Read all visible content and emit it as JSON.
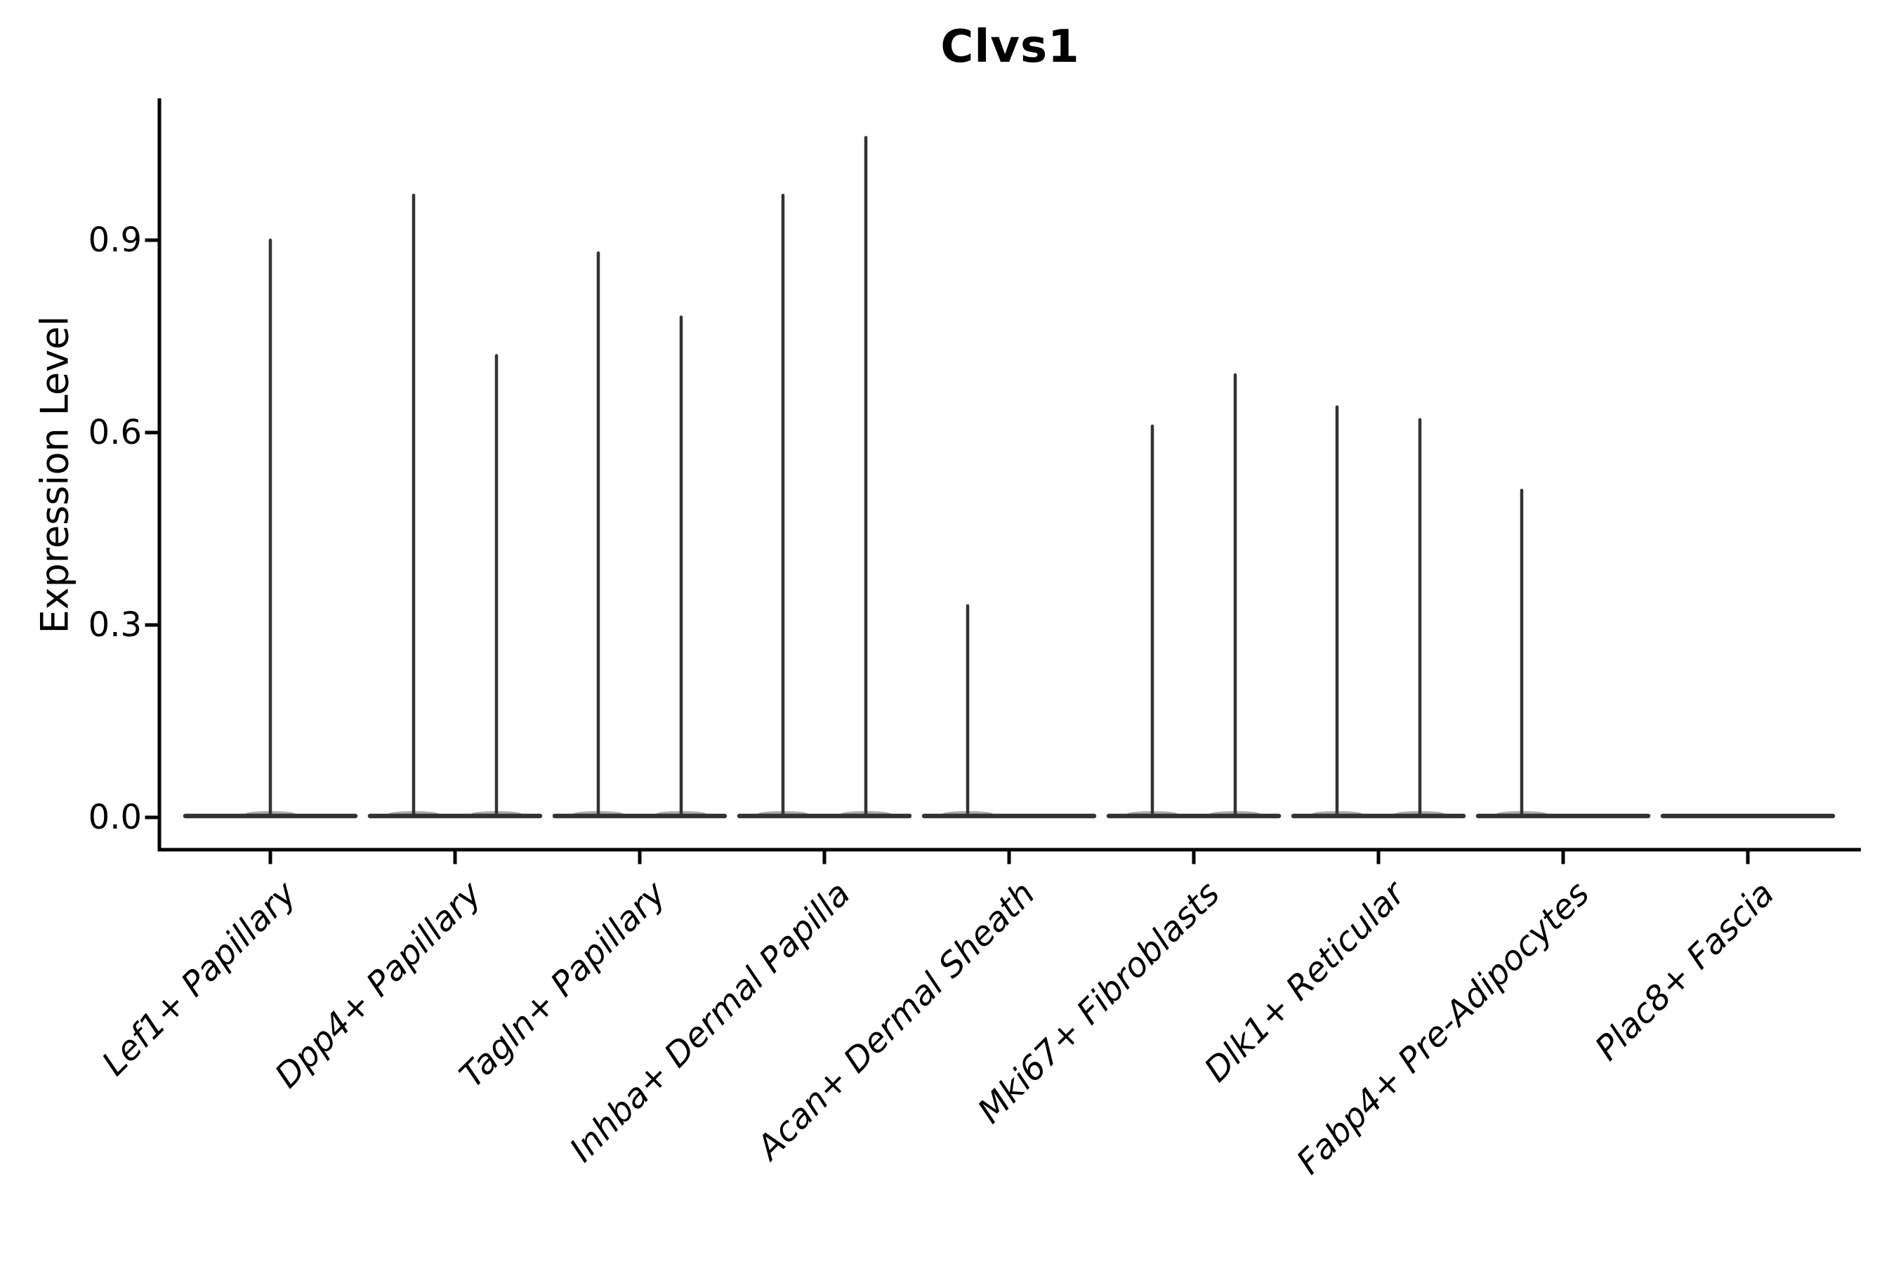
{
  "figure": {
    "background": "#ffffff"
  },
  "chart_data": {
    "type": "violin",
    "title": "Clvs1",
    "xlabel": "",
    "ylabel": "Expression Level",
    "yticks": [
      0.0,
      0.3,
      0.6,
      0.9
    ],
    "ytick_labels": [
      "0.0",
      "0.3",
      "0.6",
      "0.9"
    ],
    "ylim": [
      0,
      1.12
    ],
    "grid": false,
    "legend": null,
    "categories": [
      "Lef1+ Papillary",
      "Dpp4+ Papillary",
      "Tagln+ Papillary",
      "Inhba+ Dermal Papilla",
      "Acan+ Dermal Sheath",
      "Mki67+ Fibroblasts",
      "Dlk1+ Reticular",
      "Fabp4+ Pre-Adipocytes",
      "Plac8+ Fascia"
    ],
    "violins": [
      {
        "category": "Lef1+ Papillary",
        "spikes": [
          {
            "pos": "center",
            "max": 0.9
          }
        ]
      },
      {
        "category": "Dpp4+ Papillary",
        "spikes": [
          {
            "pos": "left",
            "max": 0.97
          },
          {
            "pos": "right",
            "max": 0.72
          }
        ]
      },
      {
        "category": "Tagln+ Papillary",
        "spikes": [
          {
            "pos": "left",
            "max": 0.88
          },
          {
            "pos": "right",
            "max": 0.78
          }
        ]
      },
      {
        "category": "Inhba+ Dermal Papilla",
        "spikes": [
          {
            "pos": "left",
            "max": 0.97
          },
          {
            "pos": "right",
            "max": 1.06
          }
        ]
      },
      {
        "category": "Acan+ Dermal Sheath",
        "spikes": [
          {
            "pos": "left",
            "max": 0.33
          }
        ]
      },
      {
        "category": "Mki67+ Fibroblasts",
        "spikes": [
          {
            "pos": "left",
            "max": 0.61
          },
          {
            "pos": "right",
            "max": 0.69
          }
        ]
      },
      {
        "category": "Dlk1+ Reticular",
        "spikes": [
          {
            "pos": "left",
            "max": 0.64
          },
          {
            "pos": "right",
            "max": 0.62
          }
        ]
      },
      {
        "category": "Fabp4+ Pre-Adipocytes",
        "spikes": [
          {
            "pos": "left",
            "max": 0.51
          }
        ]
      },
      {
        "category": "Plac8+ Fascia",
        "spikes": []
      }
    ],
    "colors": {
      "violin_stroke": "#333333",
      "axis": "#000000",
      "text": "#000000",
      "background": "#ffffff"
    }
  }
}
